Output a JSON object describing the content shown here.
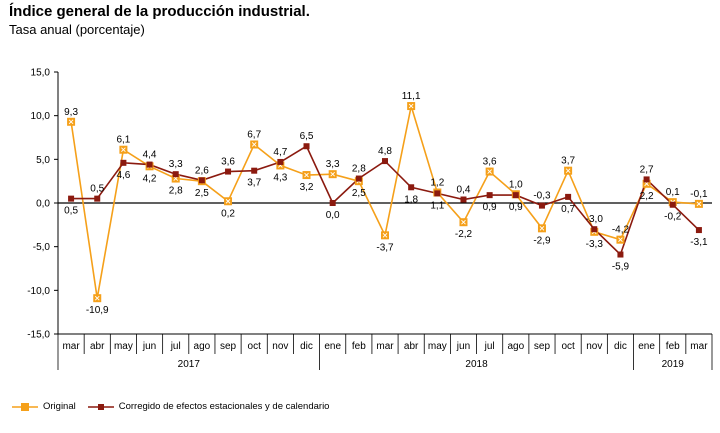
{
  "title": "Índice general de la producción industrial.",
  "subtitle": "Tasa anual (porcentaje)",
  "chart_data": {
    "type": "line",
    "categories": [
      "mar",
      "abr",
      "may",
      "jun",
      "jul",
      "ago",
      "sep",
      "oct",
      "nov",
      "dic",
      "ene",
      "feb",
      "mar",
      "abr",
      "may",
      "jun",
      "jul",
      "ago",
      "sep",
      "oct",
      "nov",
      "dic",
      "ene",
      "feb",
      "mar"
    ],
    "years": [
      {
        "label": "2017",
        "start": 0,
        "end": 9
      },
      {
        "label": "2018",
        "start": 10,
        "end": 21
      },
      {
        "label": "2019",
        "start": 22,
        "end": 24
      }
    ],
    "y_ticks": [
      15.0,
      10.0,
      5.0,
      0.0,
      -5.0,
      -10.0,
      -15.0
    ],
    "y_tick_labels": [
      "15,0",
      "10,0",
      "5,0",
      "0,0",
      "-5,0",
      "-10,0",
      "-15,0"
    ],
    "ylim": [
      -15,
      15
    ],
    "series": [
      {
        "name": "Original",
        "color": "#f5a01a",
        "marker": "square-x",
        "values": [
          9.3,
          -10.9,
          6.1,
          4.2,
          2.8,
          2.5,
          0.2,
          6.7,
          4.3,
          3.2,
          3.3,
          2.5,
          -3.7,
          11.1,
          1.2,
          -2.2,
          3.6,
          1.0,
          -2.9,
          3.7,
          -3.3,
          -4.2,
          2.2,
          0.1,
          -0.1
        ],
        "labels": [
          "9,3",
          "-10,9",
          "6,1",
          "4,2",
          "2,8",
          "2,5",
          "0,2",
          "6,7",
          "4,3",
          "3,2",
          "3,3",
          "2,5",
          "-3,7",
          "11,1",
          "1,2",
          "-2,2",
          "3,6",
          "1,0",
          "-2,9",
          "3,7",
          "-3,3",
          "-4,2",
          "2,2",
          "0,1",
          "-0,1"
        ]
      },
      {
        "name": "Corregido de efectos estacionales y de calendario",
        "color": "#8b1a0f",
        "marker": "square",
        "values": [
          0.5,
          0.5,
          4.6,
          4.4,
          3.3,
          2.6,
          3.6,
          3.7,
          4.7,
          6.5,
          0.0,
          2.8,
          4.8,
          1.8,
          1.1,
          0.4,
          0.9,
          0.9,
          -0.3,
          0.7,
          -3.0,
          -5.9,
          2.7,
          -0.2,
          -3.1
        ],
        "labels": [
          "0,5",
          "0,5",
          "4,6",
          "4,4",
          "3,3",
          "2,6",
          "3,6",
          "3,7",
          "4,7",
          "6,5",
          "0,0",
          "2,8",
          "4,8",
          "1,8",
          "1,1",
          "0,4",
          "0,9",
          "0,9",
          "-0,3",
          "0,7",
          "-3,0",
          "-5,9",
          "2,7",
          "-0,2",
          "-3,1"
        ]
      }
    ]
  }
}
